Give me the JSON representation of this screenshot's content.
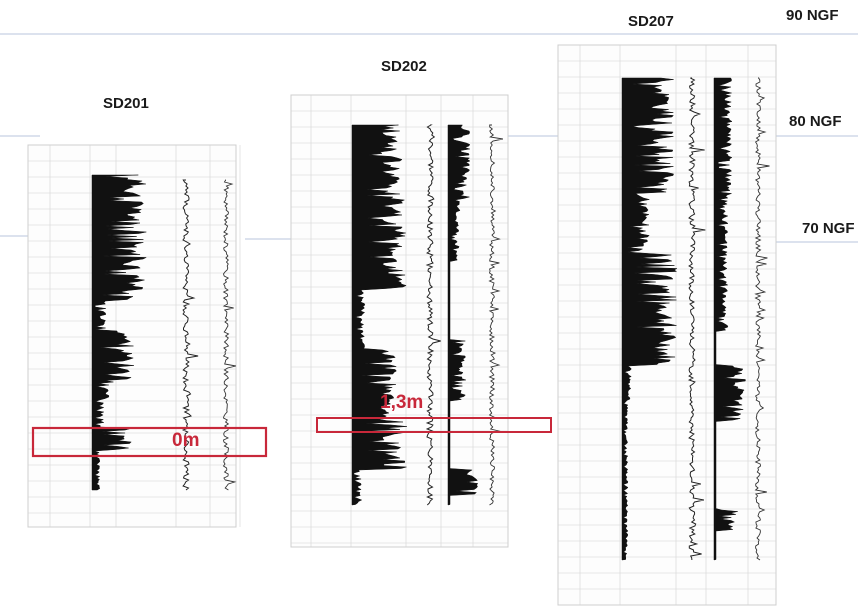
{
  "logs": [
    {
      "id": "SD201"
    },
    {
      "id": "SD202"
    },
    {
      "id": "SD207"
    }
  ],
  "levels": [
    {
      "label": "90 NGF"
    },
    {
      "label": "80 NGF"
    },
    {
      "label": "70 NGF"
    }
  ],
  "annotations": [
    {
      "text": "0m"
    },
    {
      "text": "1,3m"
    }
  ],
  "colors": {
    "highlight": "#c8283a",
    "ink": "#111111",
    "grid": "#c9c9c9",
    "level_line": "#b8c6dc"
  }
}
